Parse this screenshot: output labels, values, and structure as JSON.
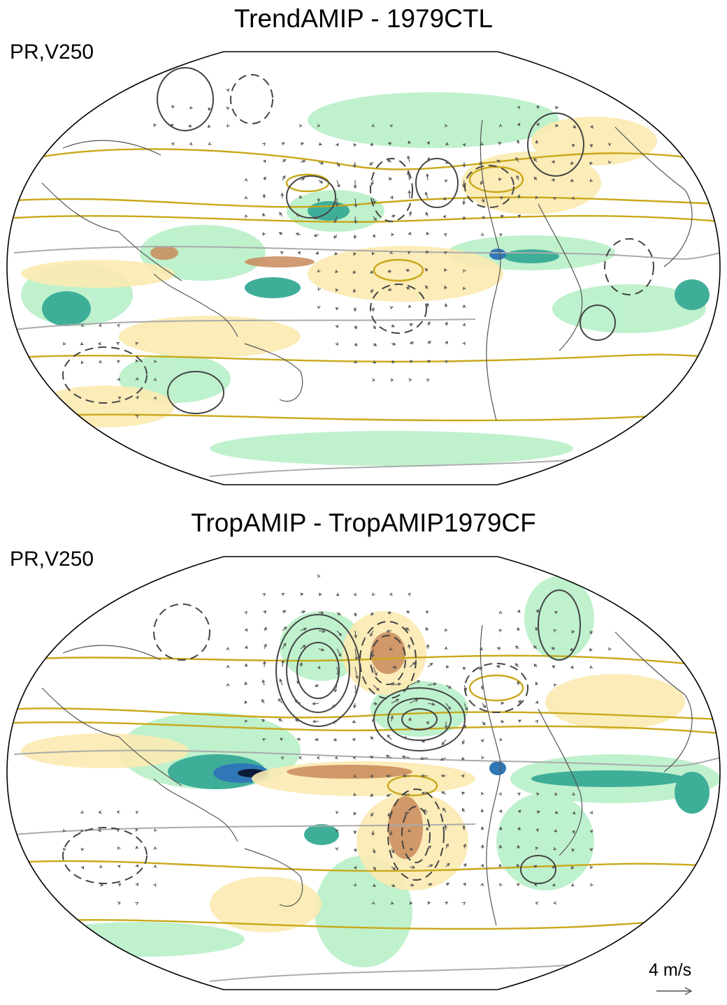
{
  "panels": [
    {
      "title": "TrendAMIP - 1979CTL",
      "label": "PR,V250"
    },
    {
      "title": "TropAMIP - TropAMIP1979CF",
      "label": "PR,V250"
    }
  ],
  "reference_vector": {
    "label": "4 m/s",
    "value": 4,
    "units": "m/s"
  },
  "colors": {
    "precip_wet_light": "#b8f0c8",
    "precip_wet_mid": "#7dd9a6",
    "precip_wet_strong": "#3fae99",
    "precip_wet_max": "#2f77b6",
    "precip_dry_light": "#fbeab1",
    "precip_dry_mid": "#edc98e",
    "precip_dry_strong": "#c98a5a",
    "jet_contour": "#c9a81a",
    "coastline": "#555555",
    "reference_line": "#aaaaaa",
    "contour": "#444444"
  }
}
